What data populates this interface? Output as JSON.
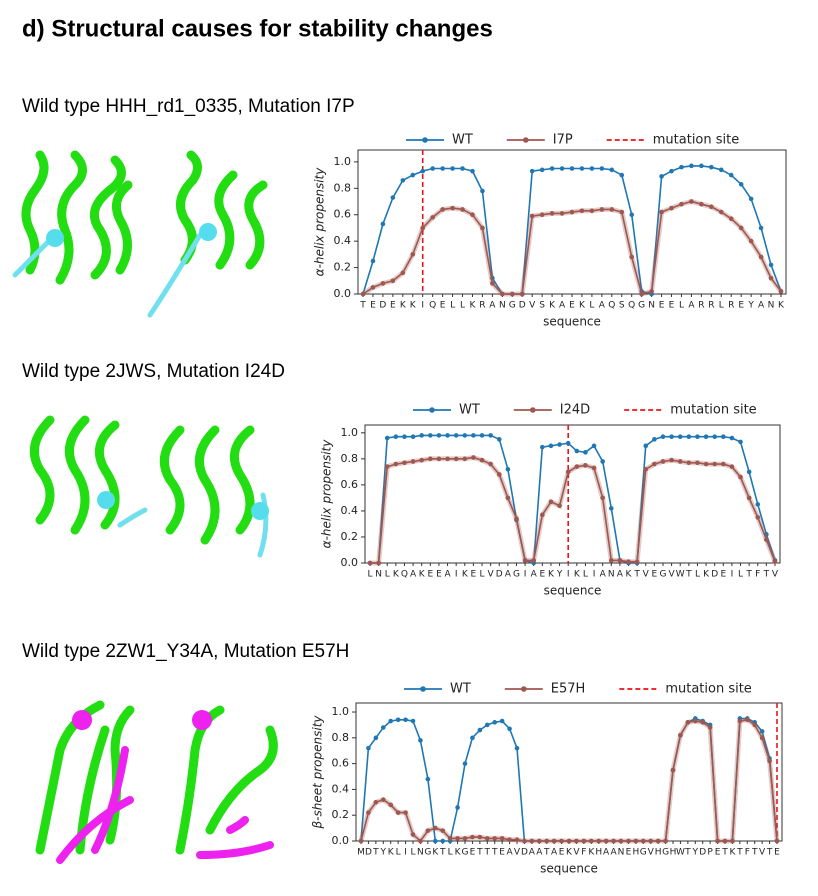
{
  "title": "d) Structural causes for stability changes",
  "chart_data": [
    {
      "type": "line",
      "title": "Wild type HHH_rd1_0335, Mutation I7P",
      "categories": [
        "T",
        "E",
        "D",
        "E",
        "K",
        "K",
        "I",
        "Q",
        "E",
        "L",
        "L",
        "K",
        "R",
        "A",
        "N",
        "G",
        "D",
        "V",
        "S",
        "K",
        "A",
        "E",
        "K",
        "L",
        "A",
        "Q",
        "S",
        "Q",
        "G",
        "N",
        "E",
        "E",
        "L",
        "A",
        "R",
        "R",
        "L",
        "R",
        "E",
        "Y",
        "A",
        "N",
        "K"
      ],
      "series": [
        {
          "name": "WT",
          "color": "#1f77b4",
          "values": [
            0,
            0.25,
            0.53,
            0.73,
            0.86,
            0.9,
            0.93,
            0.95,
            0.95,
            0.95,
            0.95,
            0.93,
            0.78,
            0.12,
            0,
            0,
            0,
            0.93,
            0.94,
            0.95,
            0.95,
            0.95,
            0.95,
            0.95,
            0.95,
            0.94,
            0.9,
            0.6,
            0.02,
            0,
            0.89,
            0.93,
            0.96,
            0.97,
            0.97,
            0.96,
            0.94,
            0.9,
            0.83,
            0.72,
            0.5,
            0.22,
            0.02
          ]
        },
        {
          "name": "I7P",
          "color": "#a0574f",
          "values": [
            0,
            0.05,
            0.08,
            0.1,
            0.16,
            0.3,
            0.5,
            0.58,
            0.64,
            0.65,
            0.64,
            0.6,
            0.5,
            0.08,
            0,
            0,
            0,
            0.59,
            0.6,
            0.61,
            0.61,
            0.62,
            0.63,
            0.63,
            0.64,
            0.64,
            0.62,
            0.28,
            0,
            0.02,
            0.62,
            0.65,
            0.68,
            0.7,
            0.68,
            0.66,
            0.62,
            0.57,
            0.5,
            0.4,
            0.28,
            0.12,
            0.02
          ]
        }
      ],
      "mutation_site": {
        "name": "mutation site",
        "color": "#e8141c",
        "index": 6
      },
      "ylabel": "α-helix propensity",
      "xlabel": "sequence",
      "ylim": [
        0,
        1.09
      ],
      "yticks": [
        {
          "value": 0,
          "label": "0.0"
        },
        0.2,
        0.4,
        0.6,
        0.8,
        {
          "value": 1,
          "label": "1.0"
        }
      ]
    },
    {
      "type": "line",
      "title": "Wild type 2JWS, Mutation I24D",
      "categories": [
        "L",
        "N",
        "L",
        "K",
        "Q",
        "A",
        "K",
        "E",
        "E",
        "A",
        "I",
        "K",
        "E",
        "L",
        "V",
        "D",
        "A",
        "G",
        "I",
        "A",
        "E",
        "K",
        "Y",
        "I",
        "K",
        "L",
        "I",
        "A",
        "N",
        "A",
        "K",
        "T",
        "V",
        "E",
        "G",
        "V",
        "W",
        "T",
        "L",
        "K",
        "D",
        "E",
        "I",
        "L",
        "T",
        "F",
        "T",
        "V"
      ],
      "series": [
        {
          "name": "WT",
          "color": "#1f77b4",
          "values": [
            0,
            0,
            0.96,
            0.97,
            0.97,
            0.97,
            0.98,
            0.98,
            0.98,
            0.98,
            0.98,
            0.98,
            0.98,
            0.98,
            0.98,
            0.95,
            0.72,
            0.33,
            0.02,
            0,
            0.89,
            0.9,
            0.91,
            0.92,
            0.86,
            0.85,
            0.9,
            0.78,
            0.42,
            0.02,
            0,
            0,
            0.9,
            0.95,
            0.97,
            0.97,
            0.97,
            0.97,
            0.97,
            0.97,
            0.97,
            0.97,
            0.96,
            0.93,
            0.7,
            0.45,
            0.22,
            0.02
          ]
        },
        {
          "name": "I24D",
          "color": "#a0574f",
          "values": [
            0,
            0,
            0.74,
            0.76,
            0.77,
            0.78,
            0.79,
            0.8,
            0.8,
            0.8,
            0.8,
            0.8,
            0.81,
            0.79,
            0.76,
            0.68,
            0.5,
            0.34,
            0.02,
            0.02,
            0.37,
            0.47,
            0.44,
            0.7,
            0.74,
            0.75,
            0.73,
            0.5,
            0.02,
            0.02,
            0.01,
            0.01,
            0.72,
            0.76,
            0.78,
            0.79,
            0.78,
            0.77,
            0.77,
            0.76,
            0.76,
            0.76,
            0.74,
            0.66,
            0.5,
            0.35,
            0.18,
            0.01
          ]
        }
      ],
      "mutation_site": {
        "name": "mutation site",
        "color": "#e8141c",
        "index": 23
      },
      "ylabel": "α-helix propensity",
      "xlabel": "sequence",
      "ylim": [
        0,
        1.06
      ],
      "yticks": [
        {
          "value": 0,
          "label": "0.0"
        },
        0.2,
        0.4,
        0.6,
        0.8,
        {
          "value": 1,
          "label": "1.0"
        }
      ]
    },
    {
      "type": "line",
      "title": "Wild type 2ZW1_Y34A, Mutation E57H",
      "categories": [
        "M",
        "D",
        "T",
        "Y",
        "K",
        "L",
        "I",
        "L",
        "N",
        "G",
        "K",
        "T",
        "L",
        "K",
        "G",
        "E",
        "T",
        "T",
        "T",
        "E",
        "A",
        "V",
        "D",
        "A",
        "A",
        "T",
        "A",
        "E",
        "K",
        "V",
        "F",
        "K",
        "H",
        "A",
        "A",
        "N",
        "E",
        "H",
        "G",
        "V",
        "H",
        "G",
        "H",
        "W",
        "T",
        "Y",
        "D",
        "P",
        "E",
        "T",
        "K",
        "T",
        "F",
        "T",
        "V",
        "T",
        "E"
      ],
      "series": [
        {
          "name": "WT",
          "color": "#1f77b4",
          "values": [
            0,
            0.72,
            0.8,
            0.88,
            0.93,
            0.94,
            0.94,
            0.93,
            0.78,
            0.48,
            0,
            0,
            0,
            0.26,
            0.6,
            0.8,
            0.86,
            0.9,
            0.92,
            0.93,
            0.87,
            0.72,
            0,
            0,
            0,
            0,
            0,
            0,
            0,
            0,
            0,
            0,
            0,
            0,
            0,
            0,
            0,
            0,
            0,
            0,
            0,
            0,
            0.55,
            0.82,
            0.92,
            0.95,
            0.93,
            0.9,
            0,
            0,
            0,
            0.95,
            0.95,
            0.92,
            0.85,
            0.64,
            0
          ]
        },
        {
          "name": "E57H",
          "color": "#a0574f",
          "values": [
            0,
            0.22,
            0.3,
            0.32,
            0.28,
            0.22,
            0.22,
            0.05,
            0,
            0.08,
            0.1,
            0.08,
            0.02,
            0.02,
            0.02,
            0.03,
            0.03,
            0.02,
            0.02,
            0.02,
            0.01,
            0.01,
            0,
            0,
            0,
            0,
            0,
            0,
            0,
            0,
            0,
            0,
            0,
            0,
            0,
            0,
            0,
            0,
            0,
            0,
            0,
            0,
            0.55,
            0.82,
            0.92,
            0.93,
            0.92,
            0.88,
            0,
            0,
            0,
            0.93,
            0.94,
            0.9,
            0.8,
            0.62,
            0
          ]
        }
      ],
      "mutation_site": {
        "name": "mutation site",
        "color": "#e8141c",
        "index": 56
      },
      "ylabel": "β-sheet propensity",
      "xlabel": "sequence",
      "ylim": [
        0,
        1.07
      ],
      "yticks": [
        {
          "value": 0,
          "label": "0.0"
        },
        0.2,
        0.4,
        0.6,
        0.8,
        {
          "value": 1,
          "label": "1.0"
        }
      ]
    }
  ]
}
